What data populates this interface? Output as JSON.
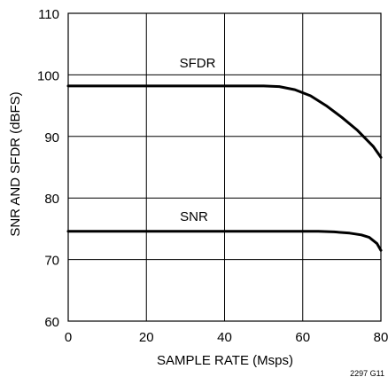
{
  "chart_data": {
    "type": "line",
    "xlabel": "SAMPLE RATE (Msps)",
    "ylabel": "SNR AND SFDR (dBFS)",
    "xlim": [
      0,
      80
    ],
    "ylim": [
      60,
      110
    ],
    "xticks": [
      "0",
      "20",
      "40",
      "60",
      "80"
    ],
    "yticks": [
      "60",
      "70",
      "80",
      "90",
      "100",
      "110"
    ],
    "grid": true,
    "legend": "none",
    "series": [
      {
        "name": "SFDR",
        "x": [
          0,
          10,
          20,
          30,
          40,
          50,
          54,
          58,
          62,
          66,
          70,
          74,
          78,
          80
        ],
        "y": [
          98.2,
          98.2,
          98.2,
          98.2,
          98.2,
          98.2,
          98.1,
          97.6,
          96.6,
          95.0,
          93.1,
          91.0,
          88.4,
          86.6
        ]
      },
      {
        "name": "SNR",
        "x": [
          0,
          10,
          20,
          30,
          40,
          50,
          60,
          64,
          68,
          72,
          75,
          77,
          79,
          80
        ],
        "y": [
          74.6,
          74.6,
          74.6,
          74.6,
          74.6,
          74.6,
          74.6,
          74.6,
          74.5,
          74.3,
          74.0,
          73.6,
          72.6,
          71.5
        ]
      }
    ],
    "annotations": [
      "SFDR",
      "SNR"
    ],
    "figure_id": "2297 G11",
    "line_color": "#000000"
  }
}
